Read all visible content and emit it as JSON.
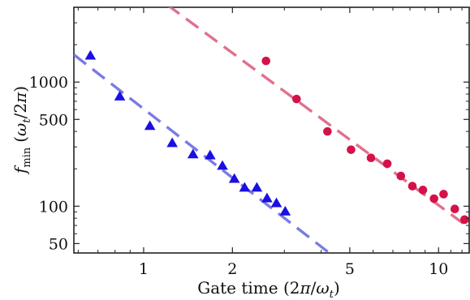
{
  "chart_data": {
    "type": "scatter",
    "title": "",
    "xlabel_main": "Gate time (2",
    "xlabel_pi": "π",
    "xlabel_slash": "/",
    "xlabel_omega": "ω",
    "xlabel_sub": "t",
    "xlabel_close": ")",
    "ylabel_f": "f",
    "ylabel_sub": "min",
    "ylabel_open": "(",
    "ylabel_omega": "ω",
    "ylabel_omega_sub": "t",
    "ylabel_rest": "/2",
    "ylabel_pi": "π",
    "ylabel_close": ")",
    "x_scale": "log",
    "y_scale": "log",
    "xlim": [
      0.58,
      12.7
    ],
    "ylim": [
      42,
      4000
    ],
    "x_ticks": [
      1,
      2,
      5,
      10
    ],
    "x_tick_labels": [
      "1",
      "2",
      "5",
      "10"
    ],
    "y_ticks": [
      50,
      100,
      500,
      1000
    ],
    "y_tick_labels": [
      "50",
      "100",
      "500",
      "1000"
    ],
    "grid": false,
    "legend": "none",
    "series": [
      {
        "marker": "triangle",
        "color": "#1a10e0",
        "x": [
          0.66,
          0.83,
          1.05,
          1.25,
          1.47,
          1.68,
          1.85,
          2.03,
          2.2,
          2.42,
          2.62,
          2.82,
          3.02
        ],
        "y": [
          1620,
          760,
          440,
          320,
          260,
          255,
          210,
          165,
          140,
          140,
          115,
          105,
          90
        ]
      },
      {
        "marker": "circle",
        "color": "#d4124a",
        "x": [
          2.6,
          3.3,
          4.2,
          5.05,
          5.9,
          6.7,
          7.45,
          8.15,
          8.85,
          9.65,
          10.4,
          11.35,
          12.25
        ],
        "y": [
          1480,
          730,
          400,
          285,
          245,
          220,
          175,
          145,
          135,
          115,
          125,
          95,
          78
        ]
      }
    ],
    "fit_lines": [
      {
        "color": "#7a7ae6",
        "x": [
          0.58,
          4.5
        ],
        "y": [
          1660,
          38
        ]
      },
      {
        "color": "#e0708c",
        "x": [
          1.2,
          12.7
        ],
        "y": [
          4200,
          67
        ]
      }
    ]
  }
}
